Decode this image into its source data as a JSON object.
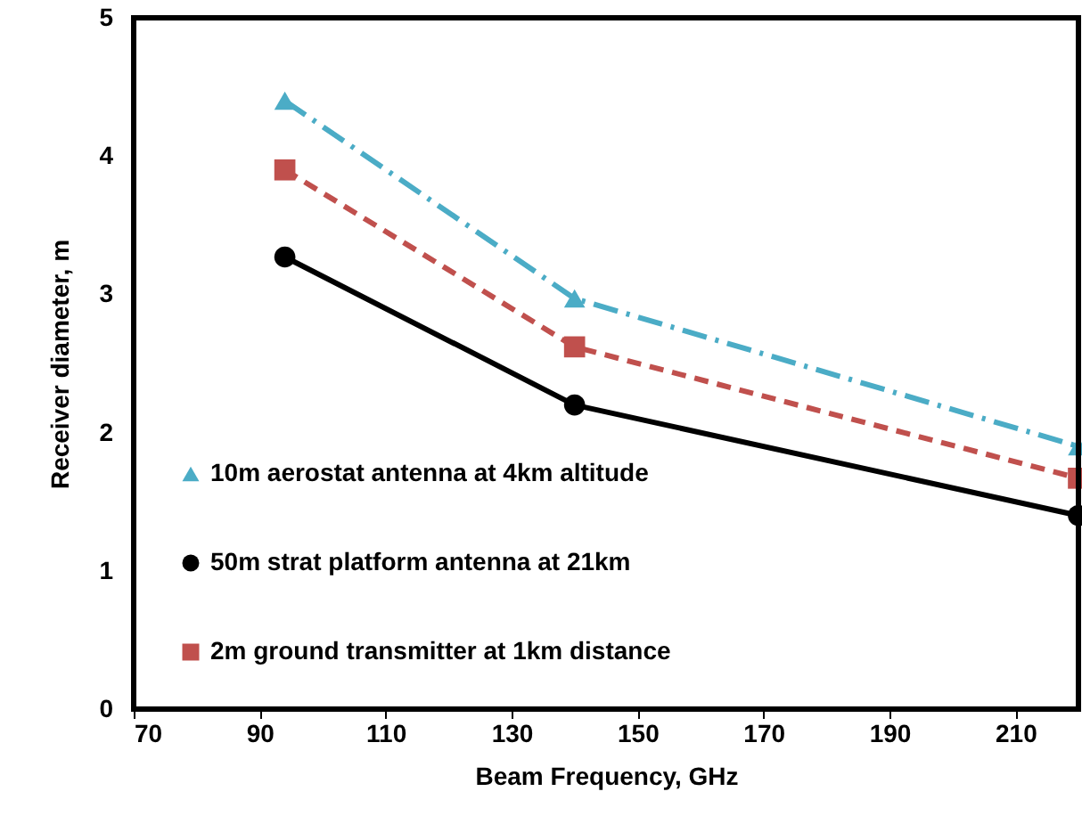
{
  "chart_data": {
    "type": "line",
    "xlabel": "Beam Frequency, GHz",
    "ylabel": "Receiver diameter, m",
    "xlim": [
      70,
      220
    ],
    "xticks": [
      70,
      90,
      110,
      130,
      150,
      170,
      190,
      210
    ],
    "ylim": [
      0,
      5
    ],
    "yticks": [
      0,
      1,
      2,
      3,
      4,
      5
    ],
    "grid": false,
    "legend": "bottom left",
    "series": [
      {
        "name": "10m aerostat antenna at 4km altitude",
        "color": "#4bacc6",
        "x": [
          94,
          140,
          220
        ],
        "values": [
          4.4,
          2.97,
          1.9
        ],
        "marker": "triangle",
        "line_style": "dashdot"
      },
      {
        "name": "50m strat platform antenna at 21km",
        "color": "#000000",
        "x": [
          94,
          140,
          220
        ],
        "values": [
          3.27,
          2.2,
          1.4
        ],
        "marker": "circle",
        "line_style": "solid"
      },
      {
        "name": "2m ground transmitter at 1km distance",
        "color": "#c0504d",
        "x": [
          94,
          140,
          220
        ],
        "values": [
          3.9,
          2.62,
          1.67
        ],
        "marker": "square",
        "line_style": "dashed"
      }
    ]
  }
}
